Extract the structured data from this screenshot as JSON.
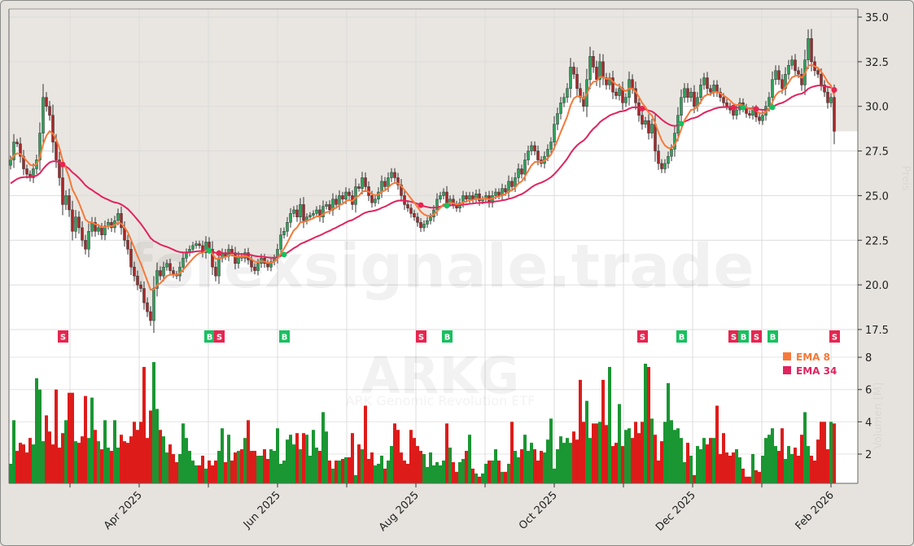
{
  "chart_data": {
    "type": "candlestick",
    "title": "",
    "watermark": {
      "site": "forexsignale.trade",
      "symbol": "ARKG",
      "name": "ARK Genomic Revolution ETF"
    },
    "x_tick_labels": [
      "Apr 2025",
      "Jun 2025",
      "Aug 2025",
      "Oct 2025",
      "Dec 2025",
      "Feb 2026"
    ],
    "price_axis": {
      "label": "Preis",
      "ylim": [
        16.45,
        35.45
      ],
      "ticks": [
        "17.5",
        "20.0",
        "22.5",
        "25.0",
        "27.5",
        "30.0",
        "32.5",
        "35.0"
      ]
    },
    "volume_axis": {
      "label": "Volumen [M]",
      "ylim": [
        0.2,
        8.5
      ],
      "ticks": [
        "2",
        "4",
        "6",
        "8"
      ]
    },
    "grid": true,
    "legend": {
      "placement": "lower-right of price panel",
      "items": [
        {
          "label": "EMA 8",
          "color": "#f5793a"
        },
        {
          "label": "EMA 34",
          "color": "#e0245e"
        }
      ]
    },
    "colors": {
      "up": "#1a9632",
      "down": "#dd1c1a",
      "buy": "#18c060",
      "sell": "#e8254f"
    },
    "close": [
      27.0,
      28.0,
      27.9,
      27.2,
      26.5,
      26.2,
      26.0,
      26.5,
      27.0,
      28.5,
      30.5,
      30.0,
      29.5,
      28.0,
      27.0,
      26.0,
      24.5,
      25.0,
      24.2,
      23.0,
      23.8,
      23.2,
      22.5,
      22.0,
      23.0,
      23.5,
      23.0,
      23.2,
      22.8,
      23.3,
      23.5,
      23.2,
      23.6,
      24.0,
      23.2,
      22.5,
      22.0,
      21.0,
      20.5,
      20.0,
      19.8,
      19.0,
      18.5,
      18.0,
      19.8,
      20.8,
      20.5,
      21.0,
      21.2,
      20.8,
      20.6,
      20.5,
      21.0,
      21.5,
      21.8,
      22.0,
      22.2,
      22.3,
      22.2,
      21.8,
      22.4,
      22.0,
      21.0,
      20.5,
      21.5,
      21.8,
      21.6,
      22.0,
      21.8,
      21.2,
      21.6,
      21.5,
      21.8,
      21.4,
      21.0,
      20.8,
      21.2,
      21.5,
      21.2,
      21.0,
      21.3,
      21.5,
      22.0,
      22.8,
      23.0,
      23.5,
      24.0,
      24.2,
      23.8,
      24.5,
      23.6,
      23.8,
      23.9,
      24.0,
      24.2,
      23.8,
      24.4,
      24.5,
      24.2,
      24.8,
      24.5,
      25.0,
      24.8,
      25.2,
      25.0,
      24.5,
      25.5,
      25.4,
      26.0,
      25.5,
      25.0,
      24.6,
      24.8,
      25.2,
      25.8,
      25.5,
      26.0,
      26.3,
      26.0,
      25.6,
      25.0,
      24.5,
      24.3,
      24.0,
      23.8,
      23.5,
      23.2,
      23.4,
      23.6,
      23.8,
      24.2,
      24.8,
      25.0,
      25.2,
      24.6,
      24.8,
      24.5,
      24.3,
      24.6,
      25.0,
      24.8,
      25.0,
      24.8,
      25.1,
      24.7,
      24.8,
      25.0,
      24.6,
      25.0,
      25.2,
      25.0,
      25.4,
      25.2,
      25.8,
      25.5,
      26.0,
      26.5,
      26.2,
      27.0,
      27.5,
      27.8,
      27.5,
      27.0,
      26.8,
      27.2,
      27.6,
      28.0,
      29.0,
      29.6,
      30.2,
      30.5,
      31.0,
      32.2,
      31.8,
      31.0,
      30.5,
      30.0,
      31.5,
      32.8,
      32.2,
      31.5,
      32.5,
      31.6,
      31.2,
      31.6,
      30.8,
      30.6,
      31.0,
      30.2,
      30.5,
      31.5,
      31.0,
      30.2,
      29.5,
      29.0,
      29.2,
      28.5,
      29.0,
      27.5,
      26.8,
      26.5,
      26.8,
      27.2,
      27.6,
      28.5,
      29.5,
      30.5,
      31.0,
      30.5,
      30.8,
      30.0,
      30.5,
      31.2,
      31.6,
      31.0,
      30.8,
      31.2,
      30.8,
      30.5,
      30.2,
      30.0,
      29.8,
      29.5,
      29.8,
      30.2,
      29.9,
      29.6,
      29.5,
      29.8,
      29.4,
      29.2,
      29.5,
      30.0,
      30.5,
      31.5,
      32.0,
      31.5,
      31.0,
      31.8,
      32.3,
      32.6,
      32.0,
      31.8,
      31.2,
      32.6,
      33.8,
      32.5,
      32.0,
      31.8,
      31.2,
      30.8,
      30.2,
      30.5,
      28.6
    ],
    "volume": [
      1.4,
      4.1,
      2.2,
      2.7,
      2.6,
      2.1,
      3.0,
      2.6,
      6.7,
      6.0,
      2.8,
      4.4,
      3.4,
      2.6,
      6.0,
      2.4,
      3.3,
      4.1,
      5.8,
      5.8,
      2.8,
      2.7,
      3.1,
      5.6,
      3.0,
      5.5,
      3.5,
      2.8,
      2.3,
      4.1,
      2.4,
      2.2,
      4.1,
      2.4,
      3.2,
      2.8,
      2.7,
      3.1,
      4.0,
      3.5,
      4.0,
      7.4,
      3.0,
      4.7,
      7.7,
      4.8,
      3.5,
      3.1,
      2.1,
      2.6,
      2.0,
      1.5,
      2.0,
      3.9,
      3.0,
      2.2,
      1.6,
      1.3,
      1.3,
      1.9,
      1.1,
      1.6,
      1.3,
      1.6,
      2.2,
      3.6,
      1.5,
      3.2,
      1.6,
      2.1,
      2.2,
      2.3,
      3.0,
      4.1,
      2.2,
      2.2,
      1.9,
      1.9,
      2.3,
      1.7,
      2.3,
      2.2,
      3.6,
      1.4,
      1.6,
      2.9,
      3.2,
      2.6,
      3.3,
      2.3,
      3.3,
      3.2,
      1.9,
      3.5,
      2.4,
      2.2,
      4.6,
      3.4,
      1.6,
      1.1,
      1.6,
      1.6,
      1.7,
      1.8,
      1.8,
      3.3,
      0.7,
      2.6,
      2.3,
      5.0,
      1.7,
      2.1,
      1.3,
      1.4,
      1.9,
      1.1,
      1.6,
      2.5,
      3.9,
      3.5,
      2.1,
      1.6,
      1.4,
      3.5,
      3.0,
      2.5,
      2.2,
      2.0,
      1.2,
      2.1,
      1.3,
      1.5,
      1.3,
      1.6,
      3.9,
      2.4,
      1.5,
      0.9,
      1.5,
      1.7,
      2.2,
      3.2,
      1.1,
      0.8,
      0.6,
      0.8,
      1.4,
      1.6,
      1.6,
      2.3,
      1.6,
      0.9,
      0.9,
      1.4,
      4.0,
      2.2,
      1.8,
      2.3,
      3.2,
      2.2,
      2.7,
      2.3,
      1.6,
      2.2,
      2.1,
      2.9,
      4.2,
      1.1,
      2.3,
      3.1,
      2.7,
      3.0,
      2.7,
      3.4,
      2.9,
      6.6,
      4.0,
      5.3,
      3.0,
      3.9,
      3.9,
      4.0,
      6.6,
      3.8,
      7.4,
      2.5,
      2.7,
      5.1,
      2.5,
      3.5,
      3.6,
      3.0,
      4.0,
      3.3,
      4.0,
      7.6,
      7.4,
      4.2,
      3.2,
      1.6,
      2.8,
      4.0,
      6.4,
      4.1,
      3.5,
      3.6,
      3.0,
      1.5,
      2.7,
      1.9,
      0.7,
      2.5,
      2.3,
      3.0,
      2.6,
      3.0,
      3.0,
      5.0,
      2.0,
      3.3,
      2.1,
      1.9,
      2.1,
      2.3,
      1.8,
      1.1,
      0.6,
      0.6,
      2.0,
      1.0,
      0.9,
      1.9,
      3.0,
      3.2,
      3.6,
      2.5,
      2.2,
      3.6,
      1.7,
      2.5,
      2.0,
      2.4,
      1.9,
      3.2,
      4.6,
      2.5,
      1.9,
      1.6,
      2.9,
      4.0,
      4.0,
      2.3,
      4.0,
      3.9
    ],
    "signals": [
      {
        "type": "S",
        "bar": 16
      },
      {
        "type": "B",
        "bar": 61
      },
      {
        "type": "S",
        "bar": 64
      },
      {
        "type": "B",
        "bar": 84
      },
      {
        "type": "S",
        "bar": 126
      },
      {
        "type": "B",
        "bar": 134
      },
      {
        "type": "S",
        "bar": 194
      },
      {
        "type": "B",
        "bar": 206
      },
      {
        "type": "S",
        "bar": 222
      },
      {
        "type": "B",
        "bar": 225
      },
      {
        "type": "S",
        "bar": 229
      },
      {
        "type": "B",
        "bar": 234
      },
      {
        "type": "S",
        "bar": 253
      }
    ]
  }
}
